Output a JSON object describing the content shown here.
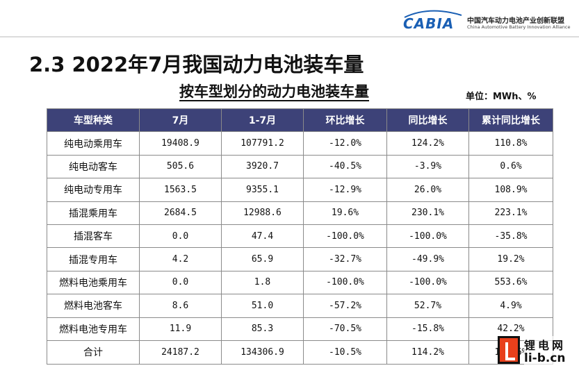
{
  "logo": {
    "word": "CABIA",
    "cn": "中国汽车动力电池产业创新联盟",
    "en": "China Automotive Battery Innovation Alliance",
    "color": "#1a5fb4"
  },
  "section_title": "2.3 2022年7月我国动力电池装车量",
  "table_title": "按车型划分的动力电池装车量",
  "unit": "单位：MWh、%",
  "table": {
    "header_bg": "#3d4278",
    "headers": [
      "车型种类",
      "7月",
      "1-7月",
      "环比增长",
      "同比增长",
      "累计同比增长"
    ],
    "rows": [
      [
        "纯电动乘用车",
        "19408.9",
        "107791.2",
        "-12.0%",
        "124.2%",
        "110.8%"
      ],
      [
        "纯电动客车",
        "505.6",
        "3920.7",
        "-40.5%",
        "-3.9%",
        "0.6%"
      ],
      [
        "纯电动专用车",
        "1563.5",
        "9355.1",
        "-12.9%",
        "26.0%",
        "108.9%"
      ],
      [
        "插混乘用车",
        "2684.5",
        "12988.6",
        "19.6%",
        "230.1%",
        "223.1%"
      ],
      [
        "插混客车",
        "0.0",
        "47.4",
        "-100.0%",
        "-100.0%",
        "-35.8%"
      ],
      [
        "插混专用车",
        "4.2",
        "65.9",
        "-32.7%",
        "-49.9%",
        "19.2%"
      ],
      [
        "燃料电池乘用车",
        "0.0",
        "1.8",
        "-100.0%",
        "-100.0%",
        "553.6%"
      ],
      [
        "燃料电池客车",
        "8.6",
        "51.0",
        "-57.2%",
        "52.7%",
        "4.9%"
      ],
      [
        "燃料电池专用车",
        "11.9",
        "85.3",
        "-70.5%",
        "-15.8%",
        "42.2%"
      ],
      [
        "合计",
        "24187.2",
        "134306.9",
        "-10.5%",
        "114.2%",
        "111.6%"
      ]
    ]
  },
  "watermark": {
    "cn": "锂电网",
    "en": "li-b.cn",
    "color": "#e8401c"
  }
}
